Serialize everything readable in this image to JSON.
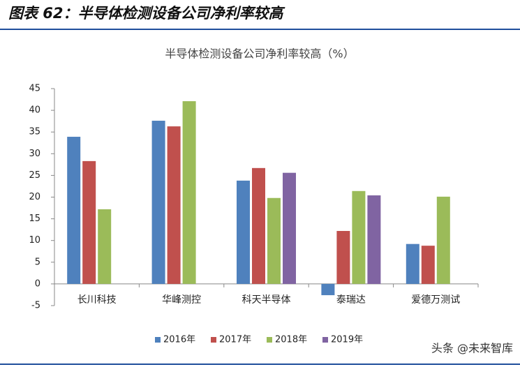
{
  "header": "图表 62：半导体检测设备公司净利率较高",
  "watermark": "头条 @未来智库",
  "chart_data": {
    "type": "bar",
    "title": "半导体检测设备公司净利率较高（%）",
    "categories": [
      "长川科技",
      "华峰测控",
      "科天半导体",
      "泰瑞达",
      "爱德万测试"
    ],
    "series": [
      {
        "name": "2016年",
        "color": "#4f81bd",
        "values": [
          33.9,
          37.6,
          23.8,
          -2.6,
          9.2
        ]
      },
      {
        "name": "2017年",
        "color": "#c0504d",
        "values": [
          28.3,
          36.3,
          26.7,
          12.2,
          8.8
        ]
      },
      {
        "name": "2018年",
        "color": "#9bbb59",
        "values": [
          17.2,
          42.1,
          19.8,
          21.4,
          20.1
        ]
      },
      {
        "name": "2019年",
        "color": "#8064a2",
        "values": [
          null,
          null,
          25.6,
          20.4,
          null
        ]
      }
    ],
    "ylim": [
      -5,
      45
    ],
    "yticks": [
      -5,
      0,
      5,
      10,
      15,
      20,
      25,
      30,
      35,
      40,
      45
    ],
    "grid": false,
    "legend": "bottom"
  }
}
